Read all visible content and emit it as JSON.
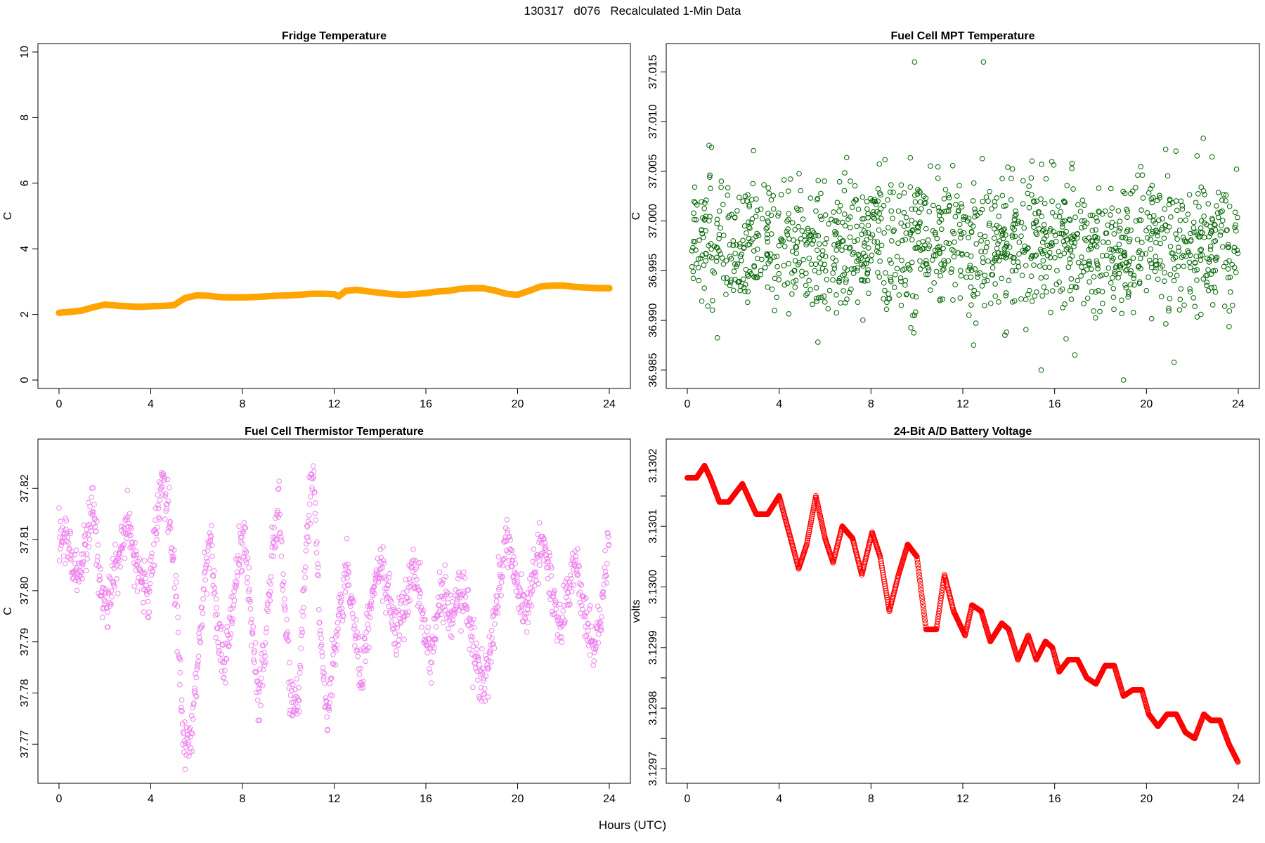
{
  "page_title": "130317   d076   Recalculated 1-Min Data",
  "x_axis_label": "Hours (UTC)",
  "colors": {
    "fridge": "#FFA500",
    "mpt": "#006400",
    "thermistor": "#EE82EE",
    "battery": "#FF0000"
  },
  "chart_data": [
    {
      "type": "scatter",
      "title": "Fridge Temperature",
      "xlabel": "",
      "ylabel": "C",
      "xlim": [
        0,
        24
      ],
      "ylim": [
        0,
        10
      ],
      "x_ticks": [
        "0",
        "4",
        "8",
        "12",
        "16",
        "20",
        "24"
      ],
      "y_ticks": [
        "0",
        "2",
        "4",
        "6",
        "8",
        "10"
      ],
      "marker": "filled-circle",
      "color": "#FFA500",
      "x": [
        0,
        0.5,
        1,
        1.5,
        2,
        2.5,
        3,
        3.5,
        4,
        4.5,
        5,
        5.5,
        6,
        6.5,
        7,
        7.5,
        8,
        8.5,
        9,
        9.5,
        10,
        10.5,
        11,
        11.5,
        12,
        12.2,
        12.5,
        13,
        13.5,
        14,
        14.5,
        15,
        15.5,
        16,
        16.5,
        17,
        17.5,
        18,
        18.5,
        19,
        19.5,
        20,
        20.5,
        21,
        21.5,
        22,
        22.5,
        23,
        23.5,
        24
      ],
      "y": [
        2.05,
        2.08,
        2.12,
        2.22,
        2.3,
        2.27,
        2.25,
        2.23,
        2.25,
        2.26,
        2.28,
        2.5,
        2.58,
        2.57,
        2.53,
        2.52,
        2.52,
        2.53,
        2.55,
        2.57,
        2.58,
        2.6,
        2.63,
        2.63,
        2.62,
        2.55,
        2.72,
        2.75,
        2.7,
        2.66,
        2.62,
        2.6,
        2.62,
        2.65,
        2.7,
        2.72,
        2.78,
        2.8,
        2.8,
        2.73,
        2.63,
        2.6,
        2.72,
        2.85,
        2.88,
        2.88,
        2.84,
        2.82,
        2.8,
        2.8
      ]
    },
    {
      "type": "scatter",
      "title": "Fuel Cell MPT Temperature",
      "xlabel": "",
      "ylabel": "C",
      "xlim": [
        0,
        24
      ],
      "ylim": [
        36.984,
        37.017
      ],
      "x_ticks": [
        "0",
        "4",
        "8",
        "12",
        "16",
        "20",
        "24"
      ],
      "y_ticks": [
        "36.985",
        "36.990",
        "36.995",
        "37.000",
        "37.005",
        "37.010",
        "37.015"
      ],
      "marker": "open-circle",
      "color": "#006400",
      "x": [
        0.2,
        0.5,
        0.8,
        1.1,
        1.4,
        1.7,
        2.0,
        2.3,
        2.6,
        2.9,
        3.2,
        3.5,
        3.8,
        4.1,
        4.4,
        4.7,
        5.0,
        5.3,
        5.6,
        5.9,
        6.2,
        6.5,
        6.8,
        7.1,
        7.4,
        7.7,
        8.0,
        8.3,
        8.6,
        8.9,
        9.2,
        9.5,
        9.8,
        9.9,
        10.1,
        10.4,
        10.7,
        11.0,
        11.3,
        11.6,
        11.9,
        12.2,
        12.5,
        12.8,
        12.9,
        13.1,
        13.4,
        13.7,
        14.0,
        14.3,
        14.6,
        14.9,
        15.2,
        15.5,
        15.8,
        16.1,
        16.4,
        16.7,
        17.0,
        17.3,
        17.6,
        17.9,
        18.2,
        18.5,
        18.8,
        19.0,
        19.1,
        19.4,
        19.7,
        20.0,
        20.3,
        20.6,
        20.9,
        21.2,
        21.5,
        21.8,
        22.1,
        22.4,
        22.7,
        23.0,
        23.3,
        23.6,
        23.9
      ],
      "y": [
        36.997,
        36.994,
        36.999,
        36.992,
        37.001,
        36.996,
        36.998,
        36.993,
        37.002,
        36.997,
        36.995,
        37.0,
        36.991,
        36.998,
        37.003,
        36.996,
        36.999,
        36.994,
        37.001,
        36.997,
        36.993,
        37.0,
        36.998,
        37.004,
        36.995,
        36.999,
        36.996,
        37.002,
        36.993,
        36.998,
        37.001,
        36.994,
        36.999,
        37.016,
        37.003,
        36.996,
        36.999,
        36.992,
        37.001,
        36.997,
        36.995,
        37.0,
        36.993,
        36.998,
        37.016,
        37.002,
        36.996,
        36.999,
        36.994,
        37.001,
        36.997,
        36.993,
        37.0,
        36.996,
        36.999,
        36.995,
        37.002,
        36.997,
        36.994,
        37.0,
        36.998,
        36.993,
        37.001,
        36.996,
        36.999,
        36.984,
        36.995,
        37.003,
        36.997,
        36.993,
        37.0,
        36.996,
        36.999,
        36.994,
        37.002,
        36.997,
        36.995,
        37.0,
        36.993,
        36.998,
        37.001,
        36.996,
        36.999
      ]
    },
    {
      "type": "scatter",
      "title": "Fuel Cell Thermistor Temperature",
      "xlabel": "",
      "ylabel": "C",
      "xlim": [
        0,
        24
      ],
      "ylim": [
        37.764,
        37.828
      ],
      "x_ticks": [
        "0",
        "4",
        "8",
        "12",
        "16",
        "20",
        "24"
      ],
      "y_ticks": [
        "37.77",
        "37.78",
        "37.79",
        "37.80",
        "37.81",
        "37.82"
      ],
      "marker": "open-circle",
      "color": "#EE82EE",
      "x": [
        0.0,
        0.3,
        0.6,
        0.9,
        1.2,
        1.5,
        1.8,
        2.1,
        2.4,
        2.7,
        3.0,
        3.3,
        3.6,
        3.9,
        4.2,
        4.5,
        4.8,
        5.1,
        5.4,
        5.7,
        6.0,
        6.3,
        6.6,
        6.9,
        7.2,
        7.5,
        7.8,
        8.1,
        8.4,
        8.7,
        9.0,
        9.3,
        9.6,
        9.9,
        10.2,
        10.5,
        10.8,
        11.1,
        11.4,
        11.7,
        12.0,
        12.3,
        12.6,
        12.9,
        13.2,
        13.5,
        13.8,
        14.1,
        14.4,
        14.7,
        15.0,
        15.3,
        15.6,
        15.9,
        16.2,
        16.5,
        16.8,
        17.1,
        17.4,
        17.7,
        18.0,
        18.3,
        18.6,
        18.9,
        19.2,
        19.5,
        19.8,
        20.1,
        20.4,
        20.7,
        21.0,
        21.3,
        21.6,
        21.9,
        22.2,
        22.5,
        22.8,
        23.1,
        23.4,
        23.7,
        24.0
      ],
      "y": [
        37.812,
        37.809,
        37.806,
        37.803,
        37.811,
        37.817,
        37.8,
        37.797,
        37.804,
        37.808,
        37.812,
        37.806,
        37.803,
        37.798,
        37.812,
        37.822,
        37.815,
        37.8,
        37.772,
        37.768,
        37.784,
        37.8,
        37.811,
        37.792,
        37.786,
        37.794,
        37.806,
        37.81,
        37.793,
        37.779,
        37.79,
        37.808,
        37.816,
        37.792,
        37.775,
        37.782,
        37.812,
        37.824,
        37.792,
        37.776,
        37.788,
        37.798,
        37.804,
        37.793,
        37.782,
        37.794,
        37.802,
        37.805,
        37.798,
        37.792,
        37.795,
        37.802,
        37.804,
        37.792,
        37.788,
        37.796,
        37.799,
        37.793,
        37.8,
        37.799,
        37.79,
        37.784,
        37.782,
        37.79,
        37.802,
        37.81,
        37.806,
        37.798,
        37.794,
        37.804,
        37.81,
        37.806,
        37.797,
        37.793,
        37.801,
        37.805,
        37.798,
        37.791,
        37.788,
        37.8,
        37.811
      ]
    },
    {
      "type": "scatter",
      "title": "24-Bit A/D Battery Voltage",
      "xlabel": "",
      "ylabel": "volts",
      "xlim": [
        0,
        24
      ],
      "ylim": [
        3.12969,
        3.13023
      ],
      "x_ticks": [
        "0",
        "4",
        "8",
        "12",
        "16",
        "20",
        "24"
      ],
      "y_ticks": [
        "3.1297",
        "3.1298",
        "3.1298",
        "3.1299",
        "3.1299",
        "3.1300",
        "3.1300",
        "3.1301",
        "3.1301",
        "3.1302"
      ],
      "y_tick_values": [
        3.1297,
        3.12975,
        3.1298,
        3.12985,
        3.1299,
        3.12995,
        3.13,
        3.13005,
        3.1301,
        3.13015
      ],
      "y_tick_label_values": [
        3.1297,
        3.1298,
        3.1299,
        3.13,
        3.1301,
        3.1302
      ],
      "y_tick_label_text": [
        "3.1297",
        "3.1298",
        "3.1299",
        "3.1300",
        "3.1301",
        "3.1302"
      ],
      "marker": "open-circle",
      "color": "#FF0000",
      "x": [
        0.0,
        0.4,
        0.75,
        1.0,
        1.4,
        1.8,
        2.4,
        3.0,
        3.5,
        4.0,
        4.5,
        4.85,
        5.2,
        5.6,
        6.0,
        6.35,
        6.75,
        7.2,
        7.6,
        8.05,
        8.4,
        8.8,
        9.2,
        9.6,
        10.0,
        10.4,
        10.85,
        11.2,
        11.6,
        12.1,
        12.4,
        12.8,
        13.2,
        13.7,
        14.0,
        14.4,
        14.85,
        15.2,
        15.6,
        15.9,
        16.2,
        16.6,
        17.0,
        17.4,
        17.8,
        18.2,
        18.6,
        19.0,
        19.4,
        19.8,
        20.1,
        20.5,
        20.9,
        21.3,
        21.7,
        22.1,
        22.5,
        22.8,
        23.2,
        23.6,
        24.0
      ]
    }
  ]
}
